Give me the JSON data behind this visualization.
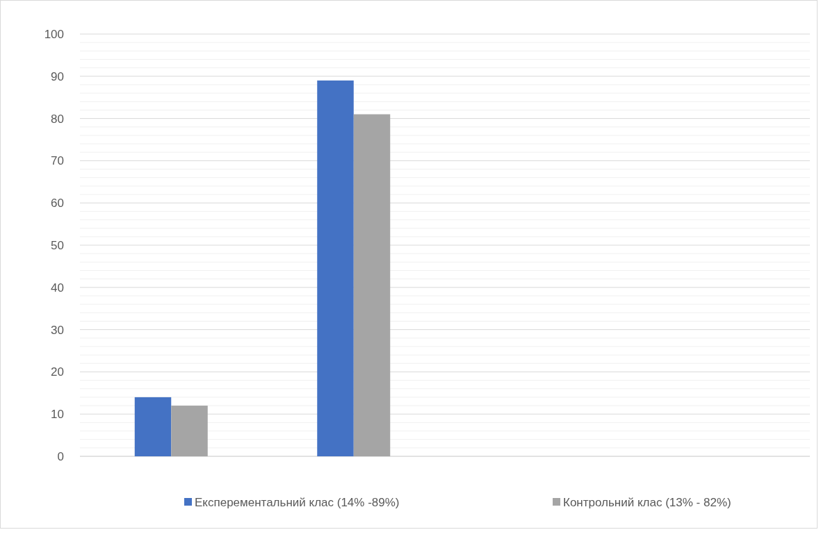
{
  "chart_data": {
    "type": "bar",
    "categories": [
      null,
      null,
      null,
      null
    ],
    "series": [
      {
        "name": "Експерементальний клас (14% -89%)",
        "color": "#4472c4",
        "values": [
          14,
          89,
          null,
          null
        ]
      },
      {
        "name": "Контрольний клас (13% - 82%)",
        "color": "#a5a5a5",
        "values": [
          12,
          81,
          null,
          null
        ]
      }
    ],
    "ylim": [
      0,
      100
    ],
    "yticks": [
      0,
      {
        "value": 2,
        "label": null
      },
      {
        "value": 4,
        "label": null
      },
      {
        "value": 6,
        "label": null
      },
      {
        "value": 8,
        "label": null
      },
      10,
      {
        "value": 12,
        "label": null
      },
      {
        "value": 14,
        "label": null
      },
      {
        "value": 16,
        "label": null
      },
      {
        "value": 18,
        "label": null
      },
      20,
      {
        "value": 22,
        "label": null
      },
      {
        "value": 24,
        "label": null
      },
      {
        "value": 26,
        "label": null
      },
      {
        "value": 28,
        "label": null
      },
      30,
      {
        "value": 32,
        "label": null
      },
      {
        "value": 34,
        "label": null
      },
      {
        "value": 36,
        "label": null
      },
      {
        "value": 38,
        "label": null
      },
      40,
      {
        "value": 42,
        "label": null
      },
      {
        "value": 44,
        "label": null
      },
      {
        "value": 46,
        "label": null
      },
      {
        "value": 48,
        "label": null
      },
      50,
      {
        "value": 52,
        "label": null
      },
      {
        "value": 54,
        "label": null
      },
      {
        "value": 56,
        "label": null
      },
      {
        "value": 58,
        "label": null
      },
      60,
      {
        "value": 62,
        "label": null
      },
      {
        "value": 64,
        "label": null
      },
      {
        "value": 66,
        "label": null
      },
      {
        "value": 68,
        "label": null
      },
      70,
      {
        "value": 72,
        "label": null
      },
      {
        "value": 74,
        "label": null
      },
      {
        "value": 76,
        "label": null
      },
      {
        "value": 78,
        "label": null
      },
      80,
      {
        "value": 82,
        "label": null
      },
      {
        "value": 84,
        "label": null
      },
      {
        "value": 86,
        "label": null
      },
      {
        "value": 88,
        "label": null
      },
      90,
      {
        "value": 92,
        "label": null
      },
      {
        "value": 94,
        "label": null
      },
      {
        "value": 96,
        "label": null
      },
      {
        "value": 98,
        "label": null
      },
      100
    ],
    "grid": true,
    "legend": "bottom"
  }
}
